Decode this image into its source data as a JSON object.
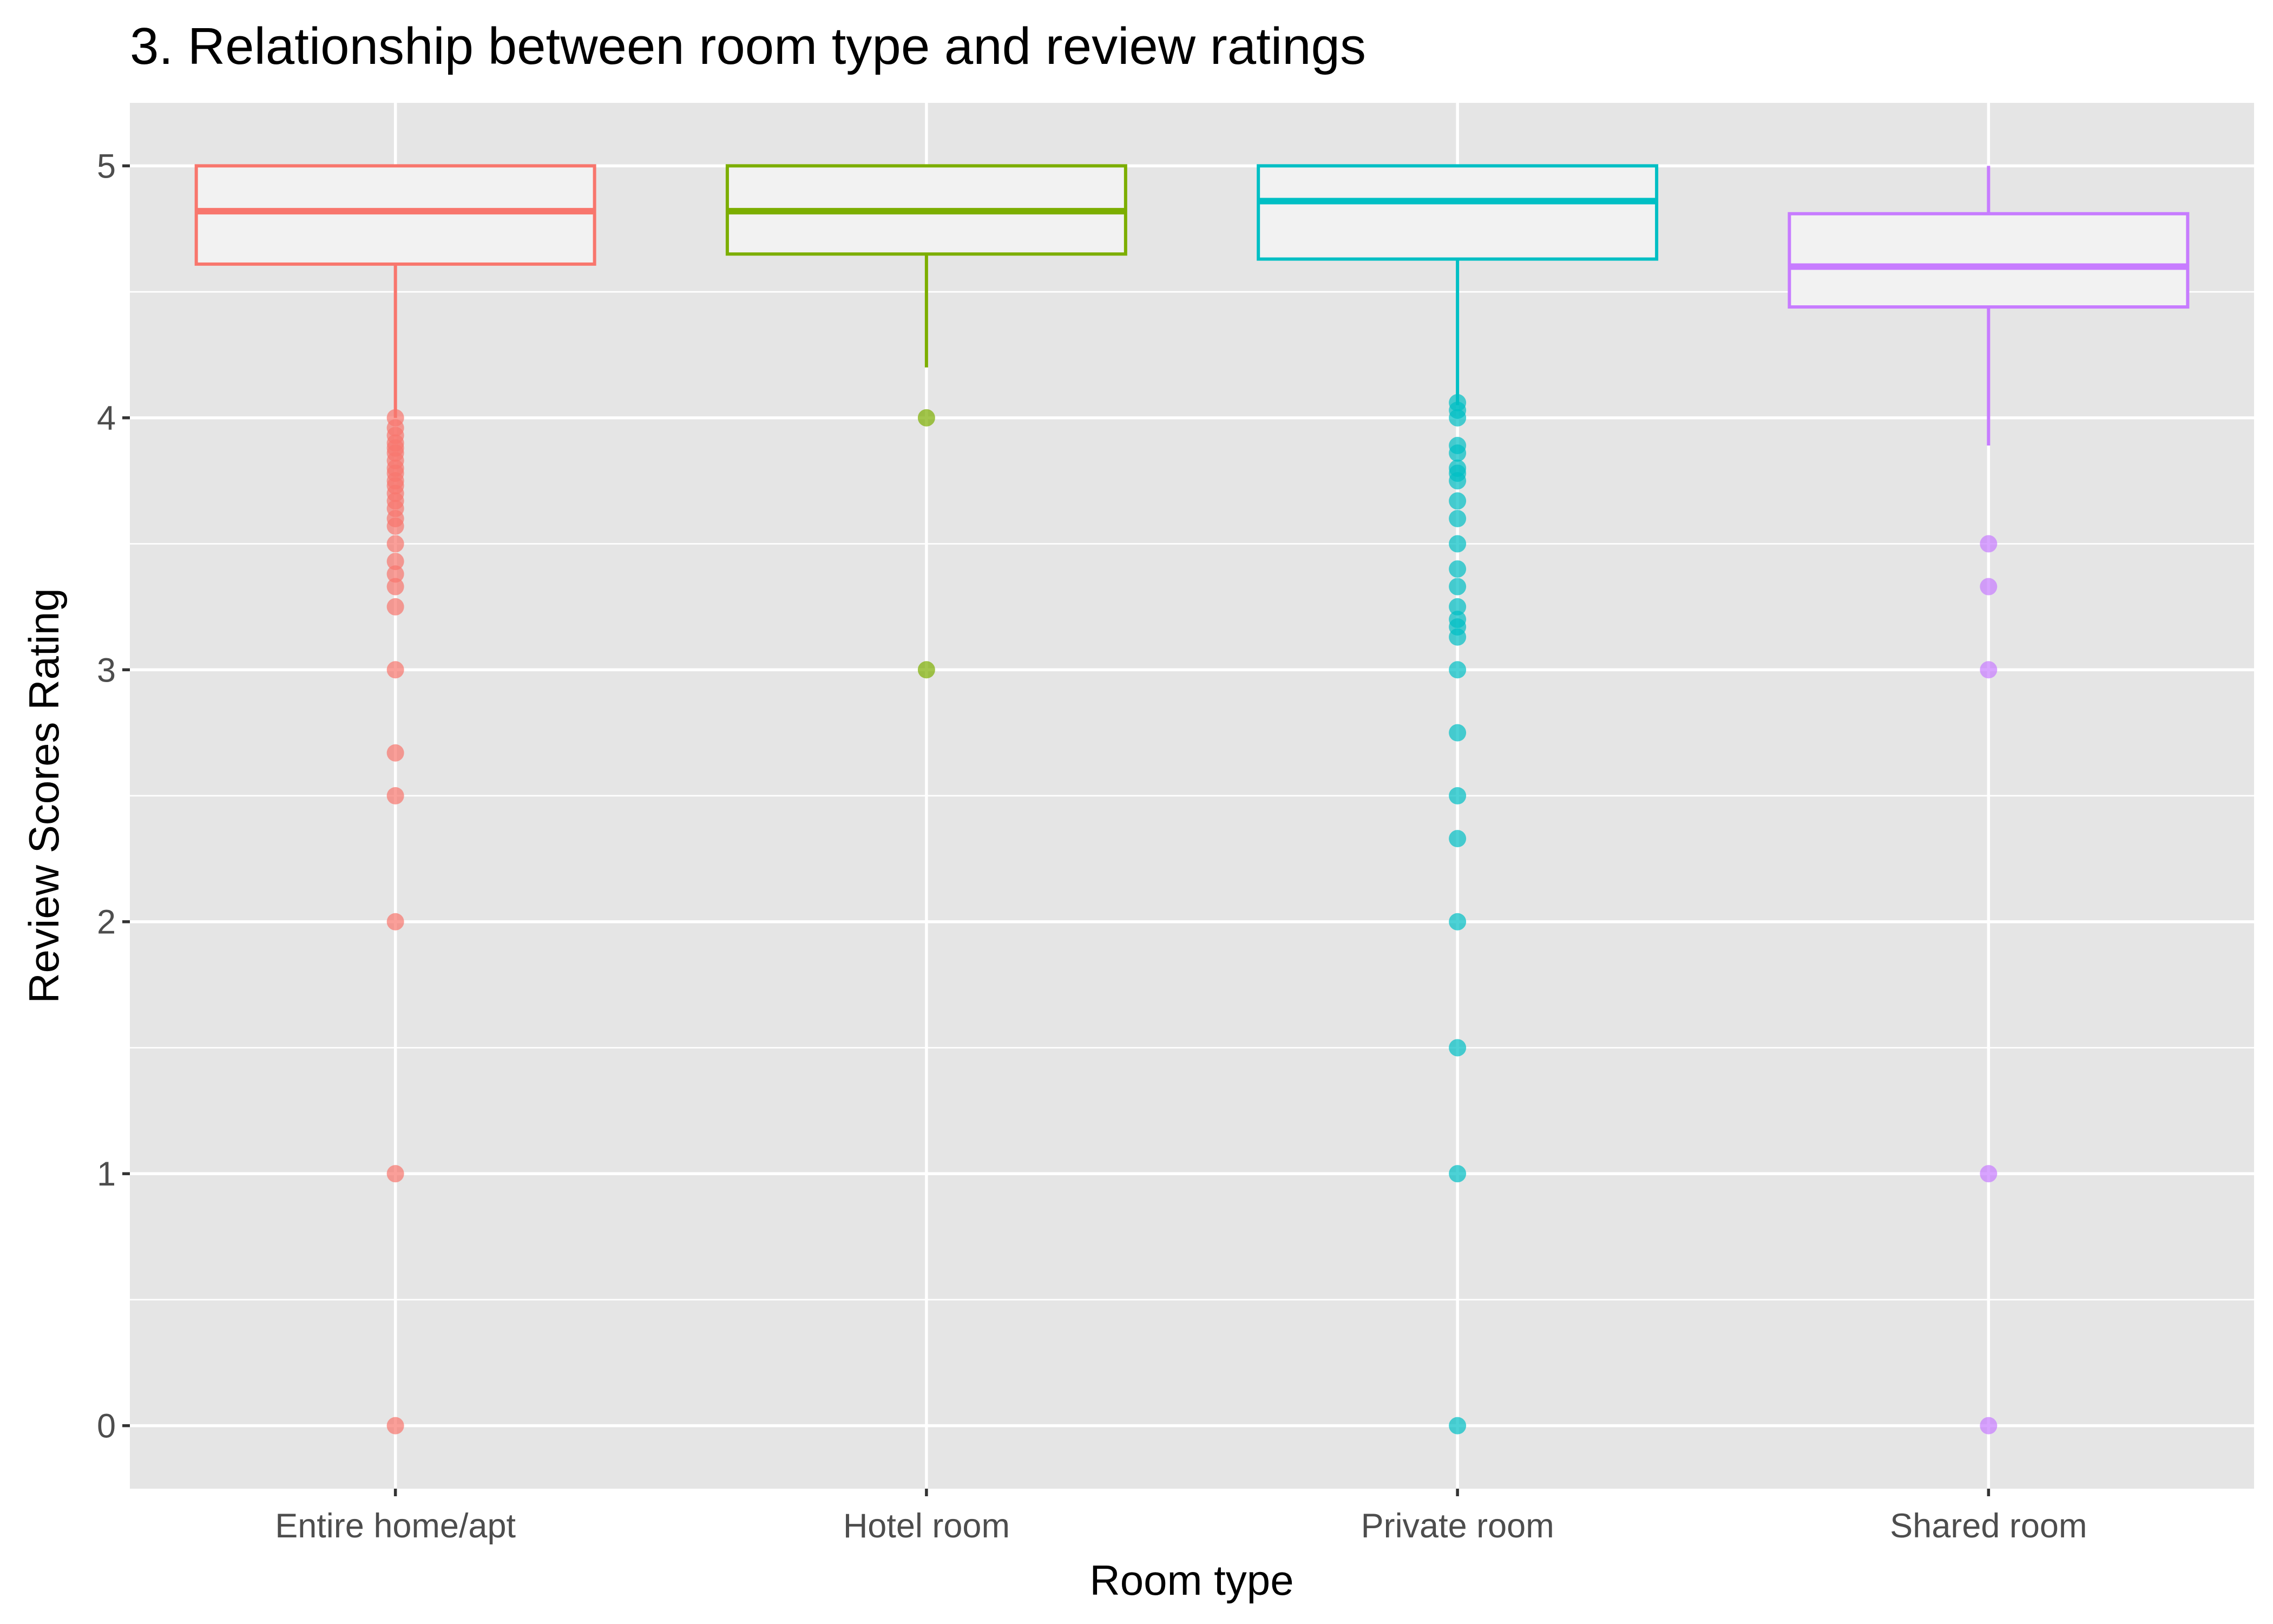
{
  "chart_data": {
    "type": "box",
    "title": "3. Relationship between room type and review ratings",
    "xlabel": "Room type",
    "ylabel": "Review Scores Rating",
    "ylim": [
      -0.25,
      5.25
    ],
    "yticks": [
      0,
      1,
      2,
      3,
      4,
      5
    ],
    "grid": true,
    "legend": "none",
    "categories": [
      "Entire home/apt",
      "Hotel room",
      "Private room",
      "Shared room"
    ],
    "series": [
      {
        "category": "Entire home/apt",
        "color": "#F8766D",
        "min": 4.0,
        "q1": 4.61,
        "median": 4.82,
        "q3": 5.0,
        "max": 5.0,
        "outliers": [
          4.0,
          3.96,
          3.93,
          3.9,
          3.88,
          3.86,
          3.83,
          3.8,
          3.78,
          3.75,
          3.73,
          3.7,
          3.67,
          3.64,
          3.6,
          3.57,
          3.5,
          3.43,
          3.38,
          3.33,
          3.25,
          3.0,
          2.67,
          2.5,
          2.0,
          1.0,
          0.0
        ]
      },
      {
        "category": "Hotel room",
        "color": "#7CAE00",
        "min": 4.2,
        "q1": 4.65,
        "median": 4.82,
        "q3": 5.0,
        "max": 5.0,
        "outliers": [
          4.0,
          3.0
        ]
      },
      {
        "category": "Private room",
        "color": "#00BFC4",
        "min": 4.05,
        "q1": 4.63,
        "median": 4.86,
        "q3": 5.0,
        "max": 5.0,
        "outliers": [
          4.06,
          4.03,
          4.0,
          3.89,
          3.86,
          3.8,
          3.78,
          3.75,
          3.67,
          3.6,
          3.5,
          3.4,
          3.33,
          3.25,
          3.2,
          3.17,
          3.13,
          3.0,
          2.75,
          2.5,
          2.33,
          2.0,
          1.5,
          1.0,
          0.0
        ]
      },
      {
        "category": "Shared room",
        "color": "#C77CFF",
        "min": 3.89,
        "q1": 4.44,
        "median": 4.6,
        "q3": 4.81,
        "max": 5.0,
        "outliers": [
          3.5,
          3.33,
          3.0,
          1.0,
          0.0
        ]
      }
    ]
  }
}
